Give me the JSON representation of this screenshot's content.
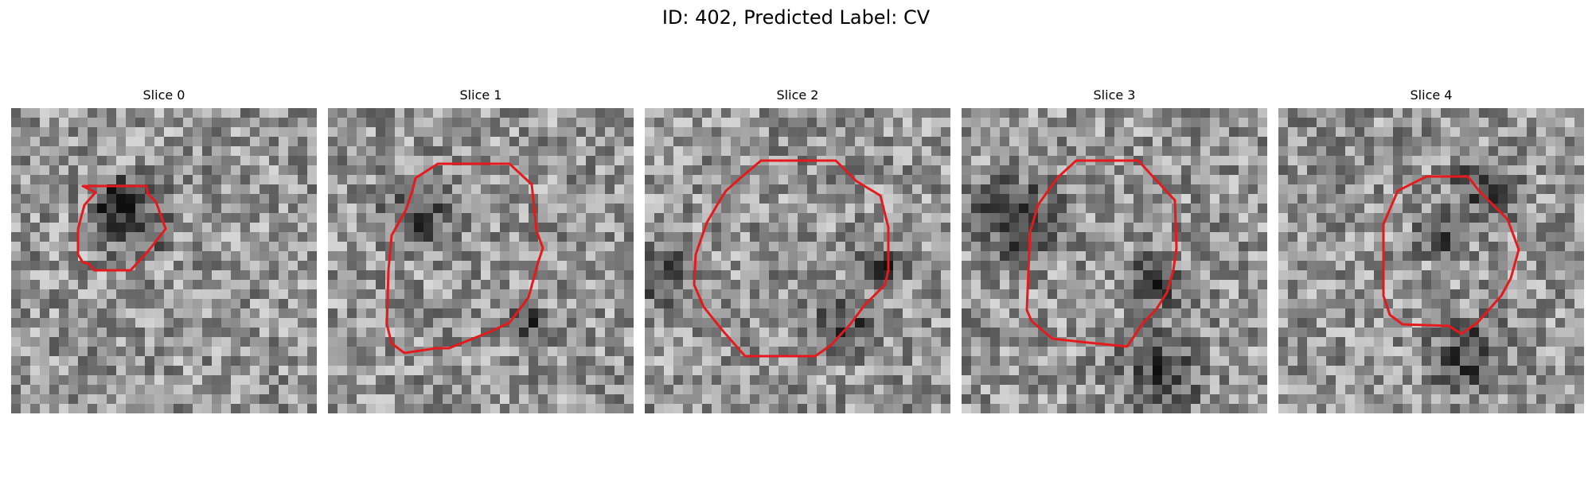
{
  "figure": {
    "title": "ID: 402, Predicted Label: CV",
    "colormap": "gray",
    "contour_color": "#e41a1c",
    "slices": [
      {
        "label": "Slice 0"
      },
      {
        "label": "Slice 1"
      },
      {
        "label": "Slice 2"
      },
      {
        "label": "Slice 3"
      },
      {
        "label": "Slice 4"
      }
    ]
  }
}
